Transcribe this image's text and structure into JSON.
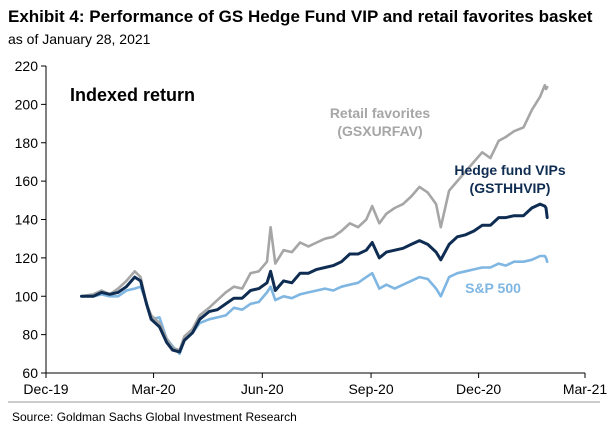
{
  "header": {
    "title": "Exhibit 4: Performance of GS Hedge Fund VIP and retail favorites basket",
    "subtitle": "as of January 28, 2021"
  },
  "footer": {
    "source": "Source: Goldman Sachs Global Investment Research"
  },
  "colors": {
    "retail": "#a6a6a6",
    "hedge": "#0f2d52",
    "sp500": "#7fb6e2",
    "axis": "#000000",
    "grid": "#c8c8c8"
  },
  "chart_data": {
    "type": "line",
    "title": "Indexed return",
    "xlabel": "",
    "ylabel": "",
    "ylim": [
      60,
      220
    ],
    "yticks": [
      60,
      80,
      100,
      120,
      140,
      160,
      180,
      200,
      220
    ],
    "xlim": [
      "2019-12-01",
      "2021-03-01"
    ],
    "xticks": [
      {
        "date": "2019-12-01",
        "label": "Dec-19"
      },
      {
        "date": "2020-03-01",
        "label": "Mar-20"
      },
      {
        "date": "2020-06-01",
        "label": "Jun-20"
      },
      {
        "date": "2020-09-01",
        "label": "Sep-20"
      },
      {
        "date": "2020-12-01",
        "label": "Dec-20"
      },
      {
        "date": "2021-03-01",
        "label": "Mar-21"
      }
    ],
    "grid": false,
    "legend": "inline annotations",
    "annotations": [
      {
        "series": "retail",
        "lines": [
          "Retail favorites",
          "(GSXURFAV)"
        ]
      },
      {
        "series": "hedge",
        "lines": [
          "Hedge fund VIPs",
          "(GSTHHVIP)"
        ]
      },
      {
        "series": "sp500",
        "lines": [
          "S&P 500"
        ]
      }
    ],
    "x": [
      "2019-12-31",
      "2020-01-10",
      "2020-01-17",
      "2020-01-24",
      "2020-01-31",
      "2020-02-07",
      "2020-02-14",
      "2020-02-19",
      "2020-02-24",
      "2020-02-28",
      "2020-03-06",
      "2020-03-12",
      "2020-03-17",
      "2020-03-23",
      "2020-03-27",
      "2020-04-03",
      "2020-04-09",
      "2020-04-17",
      "2020-04-24",
      "2020-05-01",
      "2020-05-08",
      "2020-05-15",
      "2020-05-22",
      "2020-05-29",
      "2020-06-05",
      "2020-06-08",
      "2020-06-12",
      "2020-06-19",
      "2020-06-26",
      "2020-07-03",
      "2020-07-10",
      "2020-07-17",
      "2020-07-24",
      "2020-07-31",
      "2020-08-07",
      "2020-08-14",
      "2020-08-21",
      "2020-08-28",
      "2020-09-02",
      "2020-09-08",
      "2020-09-14",
      "2020-09-21",
      "2020-09-28",
      "2020-10-05",
      "2020-10-12",
      "2020-10-19",
      "2020-10-26",
      "2020-10-30",
      "2020-11-06",
      "2020-11-13",
      "2020-11-20",
      "2020-11-27",
      "2020-12-04",
      "2020-12-11",
      "2020-12-18",
      "2020-12-24",
      "2020-12-31",
      "2021-01-08",
      "2021-01-15",
      "2021-01-22",
      "2021-01-26",
      "2021-01-27",
      "2021-01-28"
    ],
    "series": [
      {
        "name": "Retail favorites (GSXURFAV)",
        "key": "retail",
        "values": [
          100,
          101,
          103,
          101,
          104,
          108,
          113,
          110,
          96,
          90,
          86,
          78,
          73,
          72,
          79,
          83,
          90,
          94,
          98,
          102,
          105,
          104,
          112,
          113,
          118,
          136,
          117,
          124,
          123,
          128,
          126,
          128,
          130,
          131,
          134,
          138,
          136,
          140,
          147,
          138,
          143,
          146,
          148,
          152,
          157,
          154,
          148,
          136,
          155,
          160,
          165,
          170,
          175,
          172,
          181,
          183,
          186,
          188,
          197,
          204,
          210,
          208,
          209
        ]
      },
      {
        "name": "Hedge fund VIPs (GSTHHVIP)",
        "key": "hedge",
        "values": [
          100,
          100,
          102,
          101,
          102,
          105,
          110,
          108,
          96,
          88,
          84,
          76,
          72,
          71,
          77,
          81,
          88,
          92,
          93,
          96,
          99,
          99,
          103,
          104,
          107,
          113,
          103,
          108,
          107,
          112,
          112,
          114,
          115,
          116,
          118,
          122,
          122,
          124,
          128,
          120,
          123,
          124,
          125,
          127,
          129,
          127,
          123,
          119,
          127,
          131,
          132,
          134,
          137,
          137,
          141,
          141,
          142,
          142,
          146,
          148,
          147,
          146,
          141
        ]
      },
      {
        "name": "S&P 500",
        "key": "sp500",
        "values": [
          100,
          100,
          101,
          100,
          100,
          103,
          104,
          105,
          97,
          88,
          89,
          78,
          74,
          70,
          77,
          81,
          86,
          88,
          89,
          90,
          94,
          93,
          96,
          97,
          102,
          105,
          98,
          100,
          99,
          101,
          102,
          103,
          104,
          103,
          105,
          106,
          107,
          110,
          112,
          104,
          106,
          104,
          106,
          108,
          110,
          109,
          104,
          100,
          110,
          112,
          113,
          114,
          115,
          115,
          117,
          116,
          118,
          118,
          119,
          121,
          121,
          120,
          118
        ]
      }
    ]
  }
}
